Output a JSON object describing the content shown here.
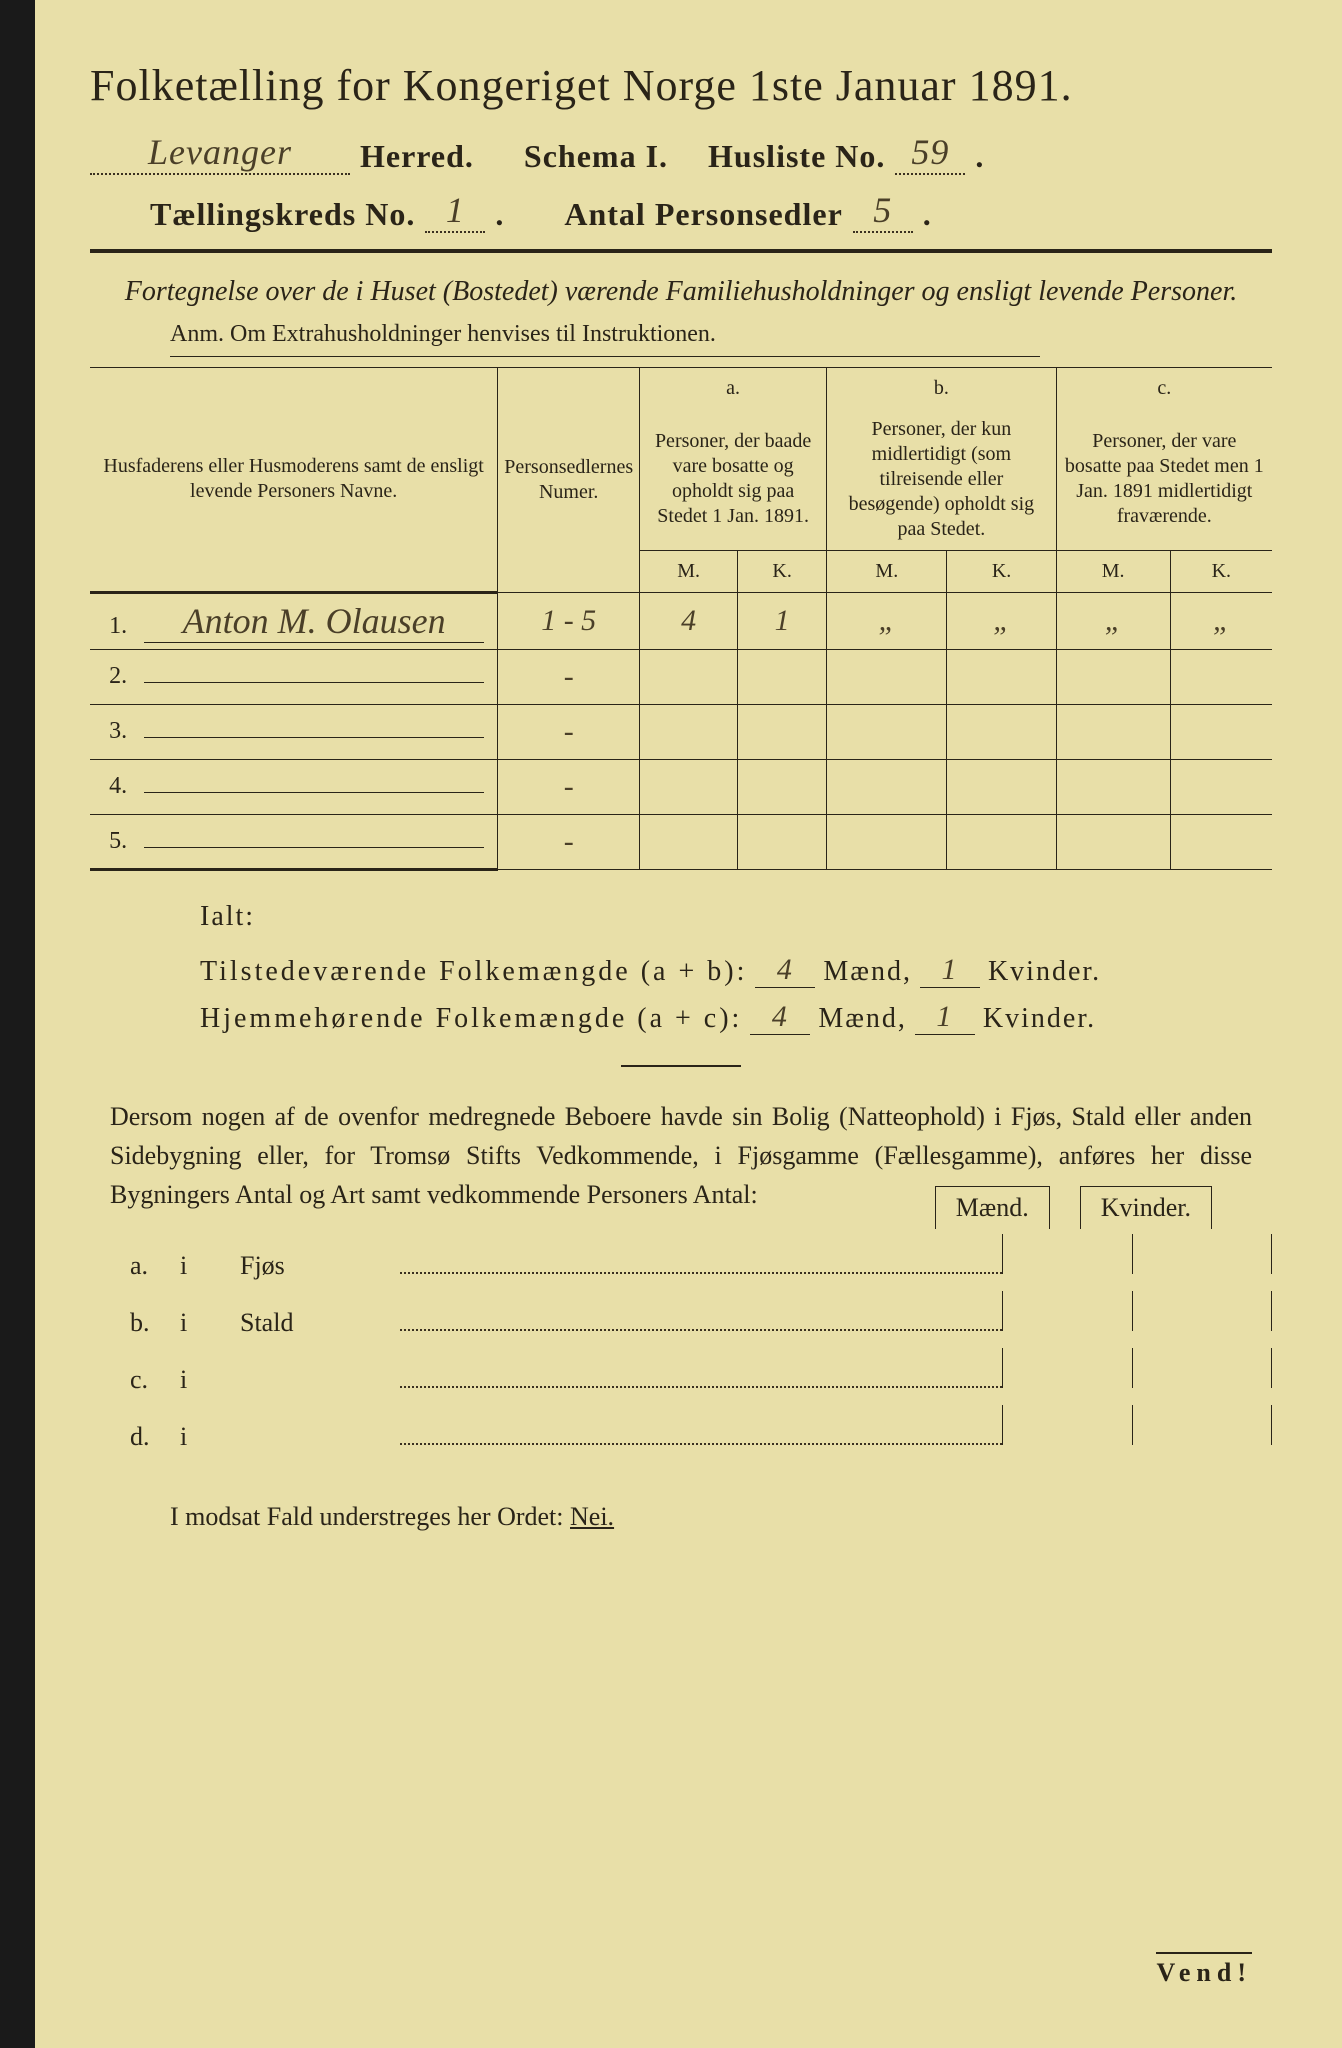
{
  "title": "Folketælling for Kongeriget Norge 1ste Januar 1891.",
  "herred_value": "Levanger",
  "herred_label": "Herred.",
  "schema_label": "Schema I.",
  "husliste_label": "Husliste No.",
  "husliste_value": "59",
  "kreds_label": "Tællingskreds No.",
  "kreds_value": "1",
  "antal_label": "Antal Personsedler",
  "antal_value": "5",
  "subtitle": "Fortegnelse over de i Huset (Bostedet) værende Familiehusholdninger og ensligt levende Personer.",
  "anm": "Anm. Om Extrahusholdninger henvises til Instruktionen.",
  "colA_header": "Husfaderens eller Husmoderens samt de ensligt levende Personers Navne.",
  "colB_header": "Personsedlernes Numer.",
  "col_a_letter": "a.",
  "col_a_text": "Personer, der baade vare bosatte og opholdt sig paa Stedet 1 Jan. 1891.",
  "col_b_letter": "b.",
  "col_b_text": "Personer, der kun midlertidigt (som tilreisende eller besøgende) opholdt sig paa Stedet.",
  "col_c_letter": "c.",
  "col_c_text": "Personer, der vare bosatte paa Stedet men 1 Jan. 1891 midlertidigt fraværende.",
  "M": "M.",
  "K": "K.",
  "rows": [
    {
      "num": "1.",
      "name": "Anton M. Olausen",
      "sedler": "1 - 5",
      "aM": "4",
      "aK": "1",
      "bM": "„",
      "bK": "„",
      "cM": "„",
      "cK": "„"
    },
    {
      "num": "2.",
      "name": "",
      "sedler": "-",
      "aM": "",
      "aK": "",
      "bM": "",
      "bK": "",
      "cM": "",
      "cK": ""
    },
    {
      "num": "3.",
      "name": "",
      "sedler": "-",
      "aM": "",
      "aK": "",
      "bM": "",
      "bK": "",
      "cM": "",
      "cK": ""
    },
    {
      "num": "4.",
      "name": "",
      "sedler": "-",
      "aM": "",
      "aK": "",
      "bM": "",
      "bK": "",
      "cM": "",
      "cK": ""
    },
    {
      "num": "5.",
      "name": "",
      "sedler": "-",
      "aM": "",
      "aK": "",
      "bM": "",
      "bK": "",
      "cM": "",
      "cK": ""
    }
  ],
  "ialt_label": "Ialt:",
  "tilstede_label": "Tilstedeværende Folkemængde (a + b):",
  "hjemme_label": "Hjemmehørende Folkemængde (a + c):",
  "maend": "Mænd,",
  "kvinder": "Kvinder.",
  "tilstede_m": "4",
  "tilstede_k": "1",
  "hjemme_m": "4",
  "hjemme_k": "1",
  "paragraph": "Dersom nogen af de ovenfor medregnede Beboere havde sin Bolig (Natteophold) i Fjøs, Stald eller anden Sidebygning eller, for Tromsø Stifts Vedkommende, i Fjøsgamme (Fællesgamme), anføres her disse Bygningers Antal og Art samt vedkommende Personers Antal:",
  "mk_m": "Mænd.",
  "mk_k": "Kvinder.",
  "buildings": [
    {
      "letter": "a.",
      "i": "i",
      "name": "Fjøs"
    },
    {
      "letter": "b.",
      "i": "i",
      "name": "Stald"
    },
    {
      "letter": "c.",
      "i": "i",
      "name": ""
    },
    {
      "letter": "d.",
      "i": "i",
      "name": ""
    }
  ],
  "nei_text": "I modsat Fald understreges her Ordet:",
  "nei_word": "Nei.",
  "vend": "Vend!",
  "colors": {
    "paper": "#e8dfa8",
    "ink": "#2a2418",
    "handwriting": "#4a3f28"
  }
}
